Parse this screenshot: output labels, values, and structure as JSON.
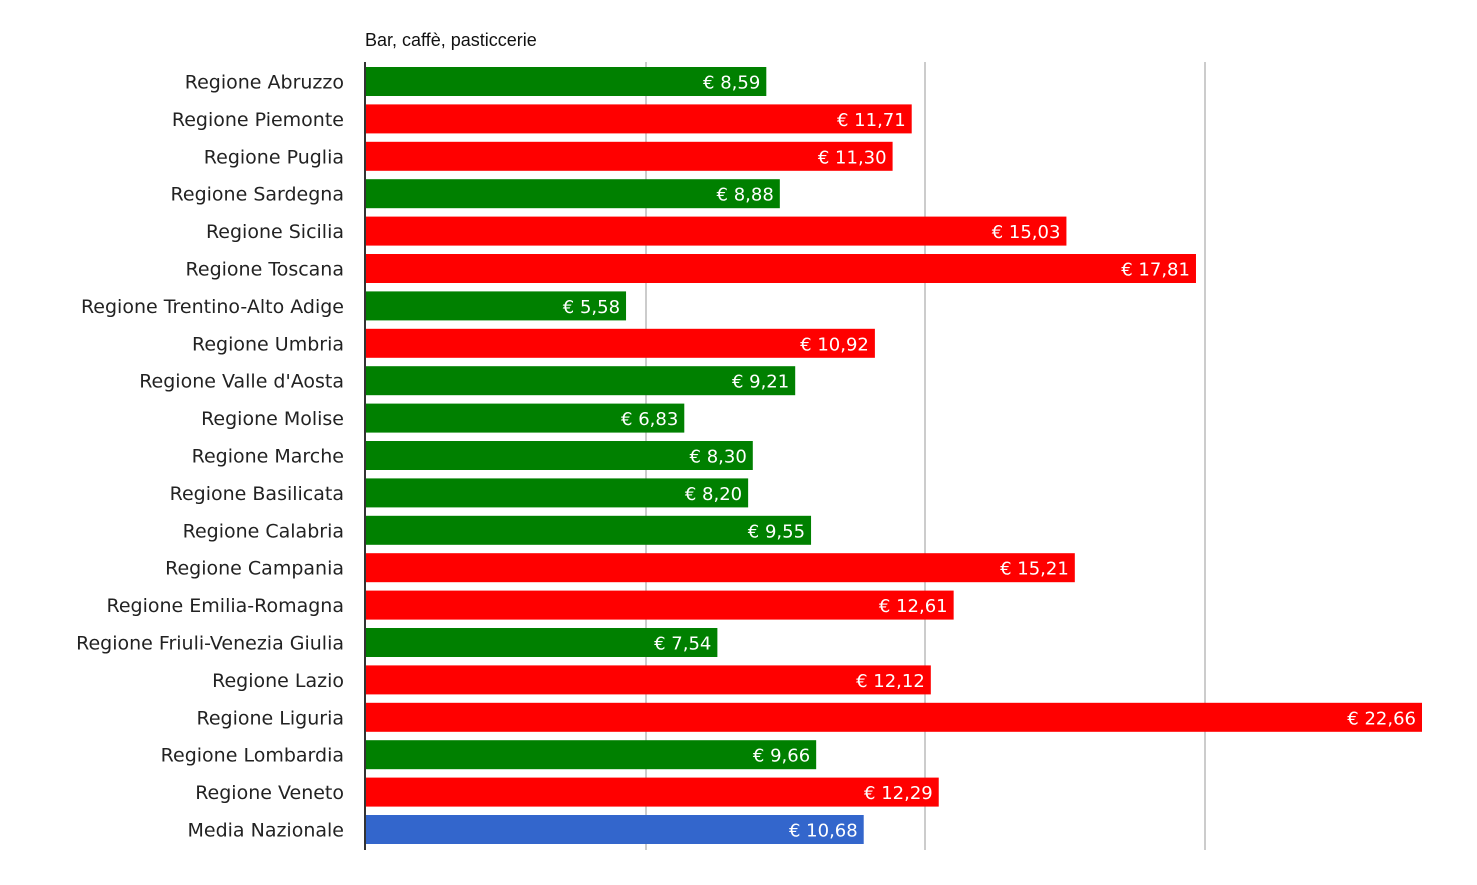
{
  "chart_data": {
    "type": "bar",
    "orientation": "horizontal",
    "title": "Bar, caffè, pasticcerie",
    "xlabel": "",
    "ylabel": "",
    "grid": true,
    "legend": "none",
    "xlim": [
      0,
      22.66
    ],
    "value_prefix": "€ ",
    "colors": {
      "above_average": "#ff0000",
      "below_average": "#008000",
      "average": "#3366cc",
      "gridline": "#cccccc",
      "axis": "#333333",
      "label_text": "#222222",
      "value_text": "#ffffff"
    },
    "categories": [
      "Regione Abruzzo",
      "Regione Piemonte",
      "Regione Puglia",
      "Regione Sardegna",
      "Regione Sicilia",
      "Regione Toscana",
      "Regione Trentino-Alto Adige",
      "Regione Umbria",
      "Regione Valle d'Aosta",
      "Regione Molise",
      "Regione Marche",
      "Regione Basilicata",
      "Regione Calabria",
      "Regione Campania",
      "Regione Emilia-Romagna",
      "Regione Friuli-Venezia Giulia",
      "Regione Lazio",
      "Regione Liguria",
      "Regione Lombardia",
      "Regione Veneto",
      "Media Nazionale"
    ],
    "values": [
      8.59,
      11.71,
      11.3,
      8.88,
      15.03,
      17.81,
      5.58,
      10.92,
      9.21,
      6.83,
      8.3,
      8.2,
      9.55,
      15.21,
      12.61,
      7.54,
      12.12,
      22.66,
      9.66,
      12.29,
      10.68
    ],
    "value_labels": [
      "€ 8,59",
      "€ 11,71",
      "€ 11,30",
      "€ 8,88",
      "€ 15,03",
      "€ 17,81",
      "€ 5,58",
      "€ 10,92",
      "€ 9,21",
      "€ 6,83",
      "€ 8,30",
      "€ 8,20",
      "€ 9,55",
      "€ 15,21",
      "€ 12,61",
      "€ 7,54",
      "€ 12,12",
      "€ 22,66",
      "€ 9,66",
      "€ 12,29",
      "€ 10,68"
    ],
    "bar_colors": [
      "green",
      "red",
      "red",
      "green",
      "red",
      "red",
      "green",
      "red",
      "green",
      "green",
      "green",
      "green",
      "green",
      "red",
      "red",
      "green",
      "red",
      "red",
      "green",
      "red",
      "blue"
    ]
  }
}
